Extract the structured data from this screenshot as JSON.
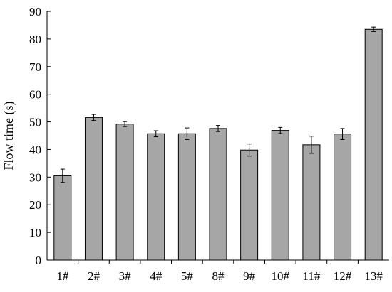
{
  "chart_data": {
    "type": "bar",
    "title": "",
    "xlabel": "",
    "ylabel": "Flow time (s)",
    "ylim": [
      0,
      90
    ],
    "yticks": [
      0,
      10,
      20,
      30,
      40,
      50,
      60,
      70,
      80,
      90
    ],
    "grid": false,
    "legend": "none",
    "categories": [
      "1#",
      "2#",
      "3#",
      "4#",
      "5#",
      "8#",
      "9#",
      "10#",
      "11#",
      "12#",
      "13#"
    ],
    "values": [
      30.5,
      51.6,
      49.2,
      45.7,
      45.7,
      47.6,
      39.8,
      46.9,
      41.7,
      45.6,
      83.5
    ],
    "errors": [
      2.4,
      1.1,
      0.9,
      1.1,
      2.1,
      1.1,
      2.2,
      1.1,
      3.1,
      2.0,
      0.8
    ],
    "colors": {
      "bar_fill": "#a6a6a6",
      "bar_stroke": "#000000",
      "axis": "#000000"
    }
  }
}
